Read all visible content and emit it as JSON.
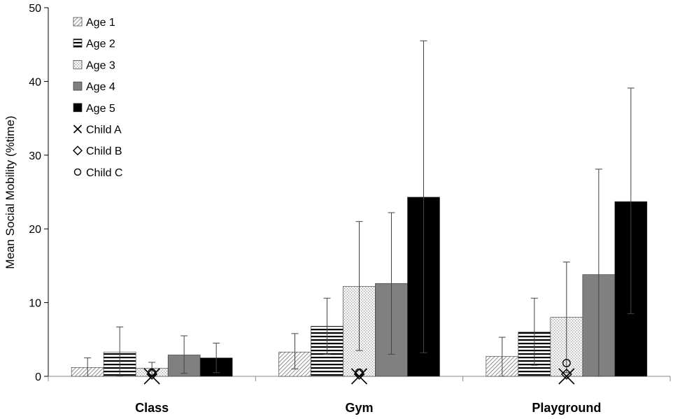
{
  "chart_data": {
    "type": "bar",
    "title": "",
    "xlabel": "",
    "ylabel": "Mean Social Mobility (%time)",
    "ylim": [
      0,
      50
    ],
    "yticks": [
      0,
      10,
      20,
      30,
      40,
      50
    ],
    "grid": false,
    "legend_position": "top-left",
    "categories": [
      "Class",
      "Gym",
      "Playground"
    ],
    "series": [
      {
        "name": "Age 1",
        "pattern": "diagonal-hatch",
        "values": [
          1.2,
          3.3,
          2.7
        ],
        "err_upper": [
          2.5,
          5.8,
          5.3
        ],
        "err_lower": [
          0.0,
          1.0,
          0.0
        ]
      },
      {
        "name": "Age 2",
        "pattern": "horizontal-stripes",
        "values": [
          3.3,
          6.8,
          6.0
        ],
        "err_upper": [
          6.7,
          10.6,
          10.6
        ],
        "err_lower": [
          0.0,
          3.0,
          1.5
        ]
      },
      {
        "name": "Age 3",
        "pattern": "light-dots",
        "values": [
          1.1,
          12.2,
          8.0
        ],
        "err_upper": [
          1.9,
          21.0,
          15.5
        ],
        "err_lower": [
          0.2,
          3.5,
          0.5
        ]
      },
      {
        "name": "Age 4",
        "pattern": "gray",
        "color": "#808080",
        "values": [
          2.9,
          12.6,
          13.8
        ],
        "err_upper": [
          5.5,
          22.2,
          28.1
        ],
        "err_lower": [
          0.4,
          3.0,
          0.0
        ]
      },
      {
        "name": "Age 5",
        "pattern": "black",
        "color": "#000000",
        "values": [
          2.5,
          24.3,
          23.7
        ],
        "err_upper": [
          4.5,
          45.5,
          39.1
        ],
        "err_lower": [
          0.5,
          3.2,
          8.5
        ]
      }
    ],
    "individuals": [
      {
        "name": "Child A",
        "marker": "x",
        "values": [
          0.0,
          0.0,
          0.0
        ]
      },
      {
        "name": "Child B",
        "marker": "diamond",
        "values": [
          0.3,
          0.3,
          0.3
        ]
      },
      {
        "name": "Child C",
        "marker": "circle",
        "values": [
          0.5,
          0.5,
          1.8
        ]
      }
    ]
  }
}
